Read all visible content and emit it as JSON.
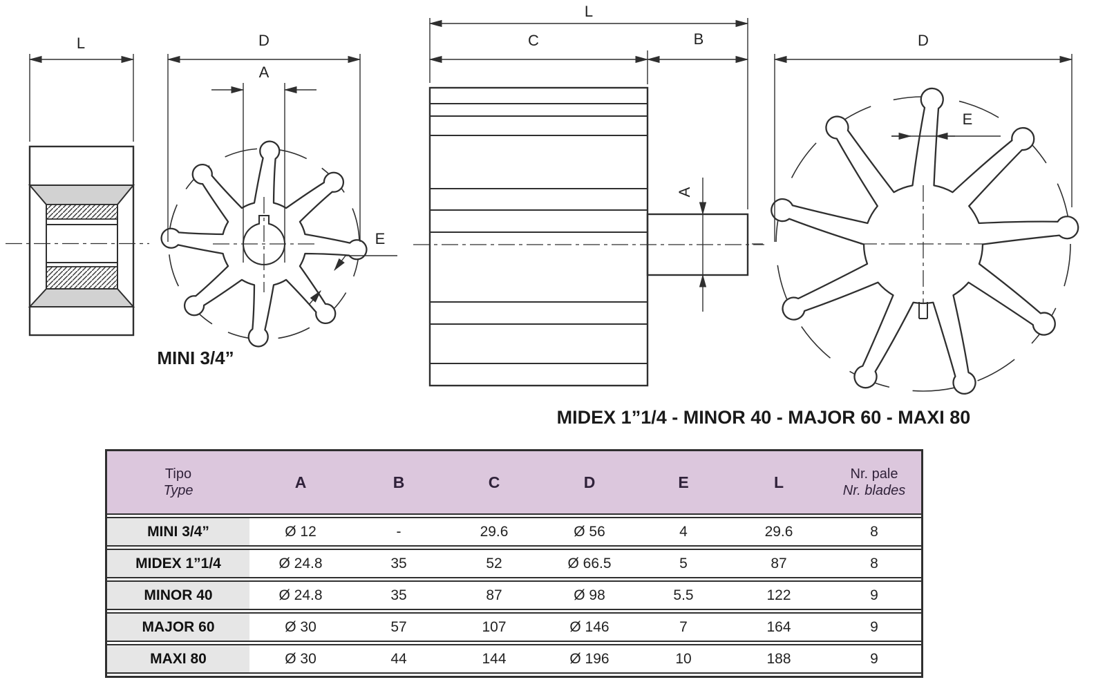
{
  "diagram": {
    "dims": {
      "L": "L",
      "D": "D",
      "A": "A",
      "B": "B",
      "C": "C",
      "E": "E"
    },
    "captions": {
      "mini": "MINI 3/4”",
      "group": "MIDEX 1”1/4 - MINOR 40 - MAJOR 60 - MAXI 80"
    },
    "views": {
      "mini_side": "impeller side section view",
      "mini_front": "impeller front view, 8 blades",
      "group_side": "impeller side view with shaft",
      "group_front": "impeller front view, 9 blades"
    }
  },
  "table": {
    "header": {
      "type_line1": "Tipo",
      "type_line2": "Type",
      "cols": [
        "A",
        "B",
        "C",
        "D",
        "E",
        "L"
      ],
      "blades_line1": "Nr. pale",
      "blades_line2": "Nr. blades"
    },
    "rows": [
      {
        "label": "MINI 3/4”",
        "cells": [
          "Ø 12",
          "-",
          "29.6",
          "Ø 56",
          "4",
          "29.6",
          "8"
        ]
      },
      {
        "label": "MIDEX 1”1/4",
        "cells": [
          "Ø 24.8",
          "35",
          "52",
          "Ø 66.5",
          "5",
          "87",
          "8"
        ]
      },
      {
        "label": "MINOR 40",
        "cells": [
          "Ø 24.8",
          "35",
          "87",
          "Ø 98",
          "5.5",
          "122",
          "9"
        ]
      },
      {
        "label": "MAJOR 60",
        "cells": [
          "Ø 30",
          "57",
          "107",
          "Ø 146",
          "7",
          "164",
          "9"
        ]
      },
      {
        "label": "MAXI 80",
        "cells": [
          "Ø 30",
          "44",
          "144",
          "Ø 196",
          "10",
          "188",
          "9"
        ]
      }
    ],
    "colors": {
      "header_bg": "#dcc7dd",
      "label_bg": "#e6e6e6",
      "border": "#2f2f2f"
    }
  }
}
